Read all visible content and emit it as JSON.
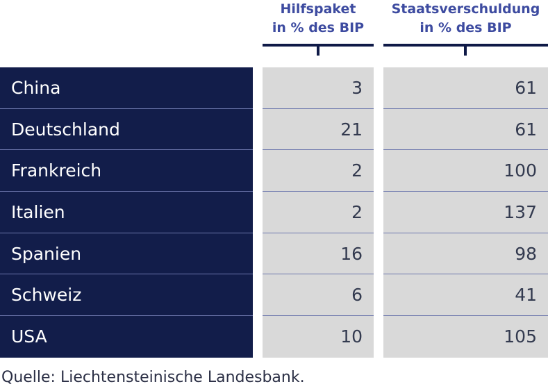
{
  "chart_data": {
    "type": "table",
    "columns": [
      {
        "header_line1": "Hilfspaket",
        "header_line2": "in % des BIP"
      },
      {
        "header_line1": "Staatsverschuldung",
        "header_line2": "in % des BIP"
      }
    ],
    "rows": [
      {
        "country": "China",
        "aid_pct_gdp": "3",
        "debt_pct_gdp": "61"
      },
      {
        "country": "Deutschland",
        "aid_pct_gdp": "21",
        "debt_pct_gdp": "61"
      },
      {
        "country": "Frankreich",
        "aid_pct_gdp": "2",
        "debt_pct_gdp": "100"
      },
      {
        "country": "Italien",
        "aid_pct_gdp": "2",
        "debt_pct_gdp": "137"
      },
      {
        "country": "Spanien",
        "aid_pct_gdp": "16",
        "debt_pct_gdp": "98"
      },
      {
        "country": "Schweiz",
        "aid_pct_gdp": "6",
        "debt_pct_gdp": "41"
      },
      {
        "country": "USA",
        "aid_pct_gdp": "10",
        "debt_pct_gdp": "105"
      }
    ]
  },
  "source": "Quelle: Liechtensteinische Landesbank.",
  "colors": {
    "header_text": "#3d4ba0",
    "country_bg": "#121d4a",
    "value_bg": "#d9d9d9",
    "row_divider": "#6d77ad",
    "rule": "#0f1a47"
  }
}
